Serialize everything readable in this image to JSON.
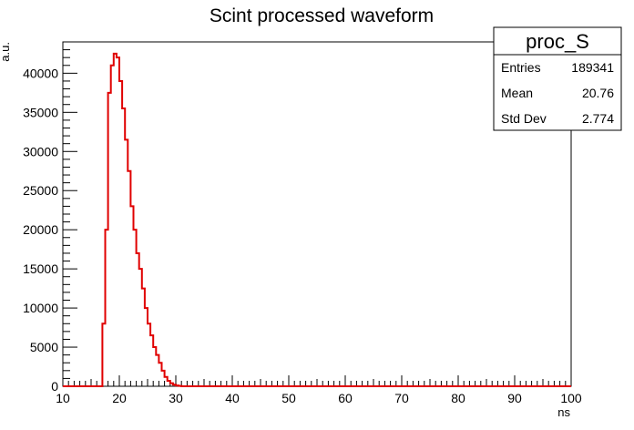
{
  "chart_data": {
    "type": "histogram",
    "title": "Scint processed waveform",
    "xlabel": "ns",
    "ylabel": "a.u.",
    "xlim": [
      10,
      100
    ],
    "ylim": [
      0,
      44000
    ],
    "xticks": [
      10,
      20,
      30,
      40,
      50,
      60,
      70,
      80,
      90,
      100
    ],
    "yticks": [
      0,
      5000,
      10000,
      15000,
      20000,
      25000,
      30000,
      35000,
      40000
    ],
    "bin_width": 0.5,
    "series": [
      {
        "color": "#e00000",
        "x_start": 16.0,
        "values": [
          0,
          0,
          8000,
          20000,
          37500,
          41000,
          42500,
          42000,
          39000,
          35500,
          31500,
          27500,
          23000,
          20000,
          17000,
          15000,
          12500,
          10000,
          8000,
          6500,
          5000,
          4000,
          3000,
          2000,
          1200,
          700,
          400,
          200,
          100,
          50,
          0
        ]
      }
    ],
    "stats_box": {
      "name": "proc_S",
      "rows": [
        {
          "label": "Entries",
          "value": "189341"
        },
        {
          "label": "Mean",
          "value": "20.76"
        },
        {
          "label": "Std Dev",
          "value": "2.774"
        }
      ]
    }
  }
}
